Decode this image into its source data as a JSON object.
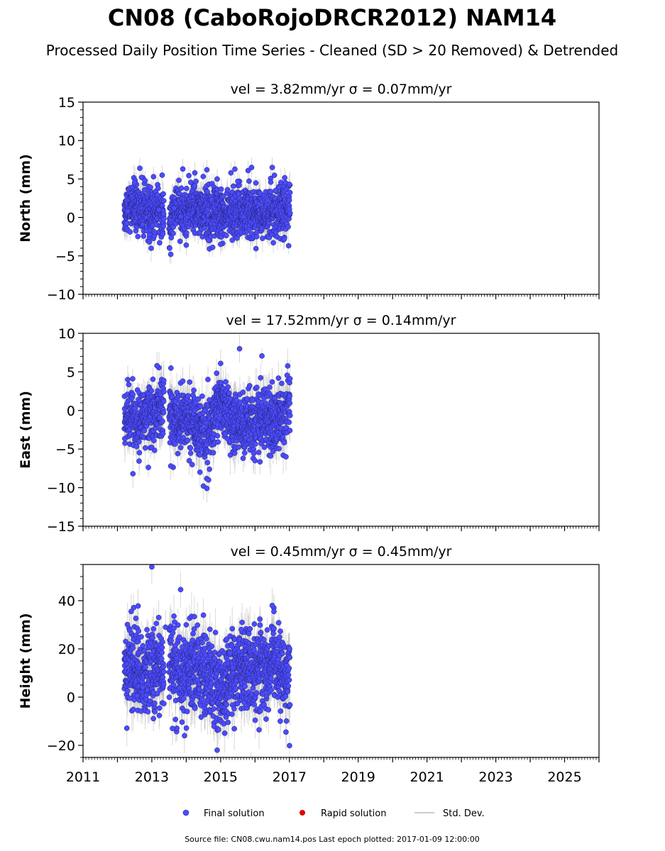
{
  "title": "CN08 (CaboRojoDRCR2012) NAM14",
  "subtitle": "Processed Daily Position Time Series - Cleaned (SD > 20 Removed) & Detrended",
  "footer": "Source file: CN08.cwu.nam14.pos  Last epoch plotted: 2017-01-09 12:00:00",
  "legend": {
    "final": "Final solution",
    "rapid": "Rapid solution",
    "sd": "Std. Dev.",
    "final_color": "#4b4bff",
    "rapid_color": "#e00000",
    "sd_color": "#cccccc"
  },
  "chart_data": [
    {
      "type": "scatter",
      "panel": "north",
      "title": "vel = 3.82mm/yr   σ = 0.07mm/yr",
      "ylabel": "North (mm)",
      "xlim": [
        2011,
        2026
      ],
      "ylim": [
        -10,
        15
      ],
      "yticks": [
        "15",
        "10",
        "5",
        "0",
        "−5",
        "−10"
      ],
      "xticks": [],
      "data_span": [
        2012.2,
        2017.02
      ],
      "series": [
        {
          "x": [
            2012.3,
            2012.5,
            2012.65,
            2012.7,
            2012.8,
            2013.05,
            2013.2,
            2013.3,
            2013.55,
            2013.65,
            2013.9,
            2014.0,
            2014.25,
            2014.6,
            2014.65,
            2014.9,
            2015.0,
            2015.3,
            2015.5,
            2015.8,
            2015.9,
            2016.05,
            2016.5,
            2016.6,
            2016.85,
            2017.0
          ],
          "y": [
            0.8,
            4.5,
            6.4,
            5.2,
            4.8,
            5.3,
            1.0,
            5.5,
            -4.8,
            1.2,
            6.3,
            -3.6,
            5.8,
            6.2,
            -3.0,
            5.0,
            -3.5,
            5.8,
            4.7,
            6.1,
            6.5,
            -2.5,
            6.5,
            3.5,
            -2.8,
            4.3
          ]
        }
      ],
      "cloud": [
        {
          "x": 2012.2,
          "y": 1.0
        },
        {
          "x": 2012.4,
          "y": 1.5
        },
        {
          "x": 2012.6,
          "y": 1.2
        },
        {
          "x": 2012.8,
          "y": 0.8
        },
        {
          "x": 2013.0,
          "y": 0.6
        },
        {
          "x": 2013.2,
          "y": 1.0
        },
        {
          "x": 2013.4,
          "y": -0.5
        },
        {
          "x": 2013.5,
          "y": -0.8
        },
        {
          "x": 2013.7,
          "y": 1.2
        },
        {
          "x": 2013.9,
          "y": 0.8
        },
        {
          "x": 2014.1,
          "y": 1.0
        },
        {
          "x": 2014.3,
          "y": 0.8
        },
        {
          "x": 2014.5,
          "y": 0.9
        },
        {
          "x": 2014.7,
          "y": 0.6
        },
        {
          "x": 2014.9,
          "y": 0.7
        },
        {
          "x": 2015.1,
          "y": 0.5
        },
        {
          "x": 2015.3,
          "y": 0.6
        },
        {
          "x": 2015.5,
          "y": 0.7
        },
        {
          "x": 2015.7,
          "y": 0.8
        },
        {
          "x": 2015.9,
          "y": 0.7
        },
        {
          "x": 2016.1,
          "y": 0.6
        },
        {
          "x": 2016.3,
          "y": 0.5
        },
        {
          "x": 2016.5,
          "y": 0.8
        },
        {
          "x": 2016.7,
          "y": 0.9
        },
        {
          "x": 2016.9,
          "y": 1.0
        },
        {
          "x": 2017.02,
          "y": 1.2
        }
      ],
      "scatter_sd": 1.6,
      "err_sd": 1.3,
      "gap": [
        2013.35,
        2013.5
      ]
    },
    {
      "type": "scatter",
      "panel": "east",
      "title": "vel = 17.52mm/yr   σ = 0.14mm/yr",
      "ylabel": "East (mm)",
      "xlim": [
        2011,
        2026
      ],
      "ylim": [
        -15,
        10
      ],
      "yticks": [
        "10",
        "5",
        "0",
        "−5",
        "−10",
        "−15"
      ],
      "xticks": [],
      "data_span": [
        2012.2,
        2017.02
      ],
      "series": [
        {
          "x": [
            2012.3,
            2012.45,
            2013.15,
            2013.55,
            2013.9,
            2014.4,
            2014.5,
            2014.6,
            2014.65,
            2015.0,
            2015.55,
            2015.7,
            2016.0,
            2016.5,
            2016.9
          ],
          "y": [
            4.0,
            -8.2,
            5.8,
            -7.2,
            3.8,
            -8.0,
            -9.8,
            -10.1,
            -9.0,
            6.1,
            8.0,
            -5.5,
            -6.5,
            3.7,
            -6.0
          ]
        }
      ],
      "cloud": [
        {
          "x": 2012.2,
          "y": -0.5
        },
        {
          "x": 2012.4,
          "y": -1.5
        },
        {
          "x": 2012.6,
          "y": -2.0
        },
        {
          "x": 2012.8,
          "y": -0.5
        },
        {
          "x": 2013.0,
          "y": -1.0
        },
        {
          "x": 2013.2,
          "y": 0.5
        },
        {
          "x": 2013.4,
          "y": 1.0
        },
        {
          "x": 2013.6,
          "y": -0.5
        },
        {
          "x": 2013.8,
          "y": -1.5
        },
        {
          "x": 2014.0,
          "y": -1.0
        },
        {
          "x": 2014.2,
          "y": -1.5
        },
        {
          "x": 2014.4,
          "y": -2.5
        },
        {
          "x": 2014.6,
          "y": -3.5
        },
        {
          "x": 2014.8,
          "y": -1.0
        },
        {
          "x": 2015.0,
          "y": 1.0
        },
        {
          "x": 2015.2,
          "y": 0.0
        },
        {
          "x": 2015.4,
          "y": -1.5
        },
        {
          "x": 2015.6,
          "y": -2.5
        },
        {
          "x": 2015.8,
          "y": -1.0
        },
        {
          "x": 2016.0,
          "y": -1.5
        },
        {
          "x": 2016.2,
          "y": -0.5
        },
        {
          "x": 2016.4,
          "y": -1.0
        },
        {
          "x": 2016.6,
          "y": -2.0
        },
        {
          "x": 2016.8,
          "y": -0.5
        },
        {
          "x": 2017.02,
          "y": 1.0
        }
      ],
      "scatter_sd": 2.0,
      "err_sd": 1.8,
      "gap": [
        2013.35,
        2013.5
      ]
    },
    {
      "type": "scatter",
      "panel": "height",
      "title": "vel = 0.45mm/yr   σ = 0.45mm/yr",
      "ylabel": "Height (mm)",
      "xlim": [
        2011,
        2026
      ],
      "ylim": [
        -25,
        55
      ],
      "yticks": [
        "40",
        "20",
        "0",
        "−20"
      ],
      "xticks": [
        "2011",
        "2013",
        "2015",
        "2017",
        "2019",
        "2021",
        "2023",
        "2025"
      ],
      "data_span": [
        2012.2,
        2017.02
      ],
      "series": [
        {
          "x": [
            2012.4,
            2012.6,
            2013.0,
            2013.2,
            2013.4,
            2013.6,
            2013.95,
            2014.0,
            2014.5,
            2014.9,
            2015.6,
            2016.5,
            2016.55,
            2016.9
          ],
          "y": [
            35.5,
            37.8,
            54.0,
            33.0,
            29.0,
            -13.0,
            -16.0,
            30.0,
            34.0,
            -22.0,
            28.0,
            38.0,
            35.5,
            -14.5
          ]
        }
      ],
      "cloud": [
        {
          "x": 2012.2,
          "y": 10.0
        },
        {
          "x": 2012.4,
          "y": 12.0
        },
        {
          "x": 2012.6,
          "y": 14.0
        },
        {
          "x": 2012.8,
          "y": 9.0
        },
        {
          "x": 2013.0,
          "y": 8.0
        },
        {
          "x": 2013.2,
          "y": 12.0
        },
        {
          "x": 2013.4,
          "y": 14.0
        },
        {
          "x": 2013.6,
          "y": 10.0
        },
        {
          "x": 2013.8,
          "y": 8.0
        },
        {
          "x": 2014.0,
          "y": 9.0
        },
        {
          "x": 2014.2,
          "y": 12.0
        },
        {
          "x": 2014.4,
          "y": 10.0
        },
        {
          "x": 2014.6,
          "y": 8.0
        },
        {
          "x": 2014.8,
          "y": 6.0
        },
        {
          "x": 2015.0,
          "y": 5.0
        },
        {
          "x": 2015.2,
          "y": 8.0
        },
        {
          "x": 2015.4,
          "y": 10.0
        },
        {
          "x": 2015.6,
          "y": 12.0
        },
        {
          "x": 2015.8,
          "y": 11.0
        },
        {
          "x": 2016.0,
          "y": 10.0
        },
        {
          "x": 2016.2,
          "y": 12.0
        },
        {
          "x": 2016.4,
          "y": 12.0
        },
        {
          "x": 2016.6,
          "y": 13.0
        },
        {
          "x": 2016.8,
          "y": 9.0
        },
        {
          "x": 2017.02,
          "y": 8.0
        }
      ],
      "scatter_sd": 8.5,
      "err_sd": 7.0,
      "gap": [
        2013.35,
        2013.5
      ]
    }
  ]
}
